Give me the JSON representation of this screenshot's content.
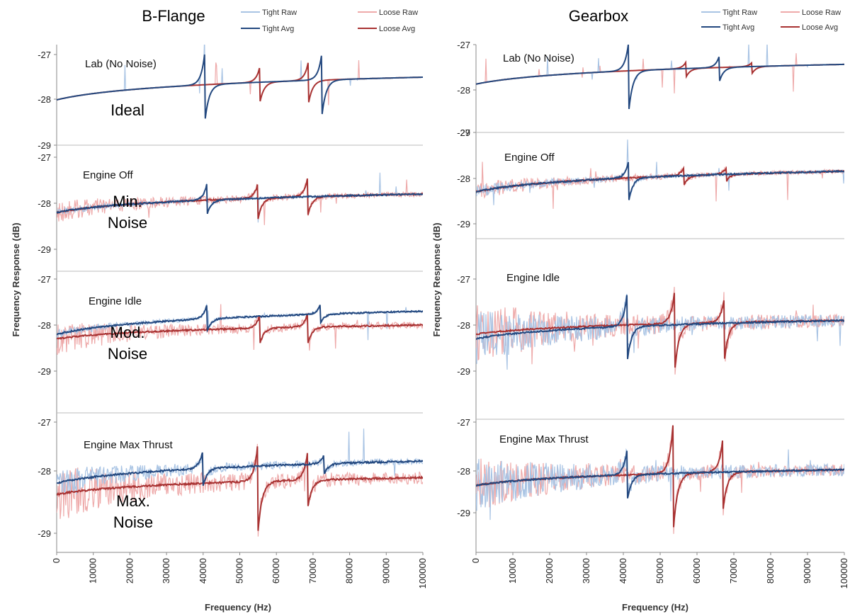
{
  "chart_data": {
    "type": "line",
    "legend": {
      "placement": "top-right",
      "entries": [
        {
          "label": "Tight Raw",
          "color": "#a9c4e4"
        },
        {
          "label": "Loose Raw",
          "color": "#eeaaaa"
        },
        {
          "label": "Tight Avg",
          "color": "#23487f"
        },
        {
          "label": "Loose Avg",
          "color": "#a83232"
        }
      ]
    },
    "xlabel": "Frequency (Hz)",
    "ylabel": "Frequency Response (dB)",
    "xlim": [
      0,
      100000
    ],
    "ylim": [
      -29,
      -27
    ],
    "x_ticks": [
      "0",
      "10000",
      "20000",
      "30000",
      "40000",
      "50000",
      "60000",
      "70000",
      "80000",
      "90000",
      "100000"
    ],
    "y_ticks": [
      "-27",
      "-28",
      "-29"
    ],
    "grid": false,
    "colors": {
      "tight_raw": "#a9c4e4",
      "loose_raw": "#eeaaaa",
      "tight_avg": "#23487f",
      "loose_avg": "#a83232"
    },
    "noise_labels": [
      "Ideal",
      "Min.\nNoise",
      "Mod.\nNoise",
      "Max.\nNoise"
    ],
    "columns": [
      {
        "title": "B-Flange",
        "panels": [
          {
            "condition": "Lab (No Noise)",
            "tight_start": -28.0,
            "tight_end": -27.5,
            "loose_start": -28.0,
            "loose_end": -27.5,
            "tight_resonances": [
              [
                40500,
                0.75,
                -0.8
              ],
              [
                72500,
                0.65,
                -0.75
              ]
            ],
            "loose_resonances": [
              [
                55500,
                0.35,
                -0.45
              ],
              [
                68800,
                0.45,
                -0.5
              ]
            ],
            "tight_noise": 0.0,
            "loose_noise": 0.0
          },
          {
            "condition": "Engine Off",
            "tight_start": -28.2,
            "tight_end": -27.8,
            "loose_start": -28.2,
            "loose_end": -27.8,
            "tight_resonances": [
              [
                41000,
                0.35,
                -0.35
              ]
            ],
            "loose_resonances": [
              [
                55000,
                0.35,
                -0.45
              ],
              [
                68500,
                0.4,
                -0.45
              ]
            ],
            "tight_noise": 0.05,
            "loose_noise": 0.15
          },
          {
            "condition": "Engine Idle",
            "tight_start": -28.2,
            "tight_end": -27.7,
            "loose_start": -28.3,
            "loose_end": -28.0,
            "tight_resonances": [
              [
                41000,
                0.3,
                -0.3
              ],
              [
                72000,
                0.2,
                -0.2
              ]
            ],
            "loose_resonances": [
              [
                55500,
                0.3,
                -0.35
              ],
              [
                68500,
                0.3,
                -0.4
              ]
            ],
            "tight_noise": 0.06,
            "loose_noise": 0.2
          },
          {
            "condition": "Engine Max Thrust",
            "tight_start": -28.1,
            "tight_end": -27.7,
            "loose_start": -28.3,
            "loose_end": -28.0,
            "tight_resonances": [
              [
                40000,
                0.35,
                -0.3
              ],
              [
                73000,
                0.15,
                -0.2
              ]
            ],
            "loose_resonances": [
              [
                55000,
                0.75,
                -0.9
              ],
              [
                68500,
                0.5,
                -0.55
              ]
            ],
            "tight_noise": 0.15,
            "loose_noise": 0.3
          }
        ]
      },
      {
        "title": "Gearbox",
        "panels": [
          {
            "condition": "Lab (No Noise)",
            "tight_start": -27.9,
            "tight_end": -27.45,
            "loose_start": -27.9,
            "loose_end": -27.45,
            "tight_resonances": [
              [
                41500,
                0.7,
                -0.9
              ],
              [
                66000,
                0.25,
                -0.35
              ]
            ],
            "loose_resonances": [
              [
                57000,
                0.15,
                -0.2
              ],
              [
                75000,
                0.1,
                -0.15
              ]
            ],
            "tight_noise": 0.0,
            "loose_noise": 0.0
          },
          {
            "condition": "Engine Off",
            "tight_start": -28.3,
            "tight_end": -27.85,
            "loose_start": -28.3,
            "loose_end": -27.85,
            "tight_resonances": [
              [
                41500,
                0.4,
                -0.5
              ]
            ],
            "loose_resonances": [
              [
                56500,
                0.2,
                -0.2
              ],
              [
                68000,
                0.15,
                -0.15
              ]
            ],
            "tight_noise": 0.08,
            "loose_noise": 0.12
          },
          {
            "condition": "Engine Idle",
            "tight_start": -28.3,
            "tight_end": -27.9,
            "loose_start": -28.2,
            "loose_end": -27.9,
            "tight_resonances": [
              [
                41000,
                0.7,
                -0.8
              ]
            ],
            "loose_resonances": [
              [
                54000,
                0.8,
                -1.0
              ],
              [
                67500,
                0.6,
                -0.8
              ]
            ],
            "tight_noise": 0.35,
            "loose_noise": 0.4
          },
          {
            "condition": "Engine Max Thrust",
            "tight_start": -28.4,
            "tight_end": -28.05,
            "loose_start": -28.4,
            "loose_end": -28.05,
            "tight_resonances": [
              [
                41000,
                0.55,
                -0.6
              ]
            ],
            "loose_resonances": [
              [
                53500,
                1.1,
                -1.35
              ],
              [
                67000,
                0.75,
                -0.9
              ]
            ],
            "tight_noise": 0.35,
            "loose_noise": 0.35
          }
        ]
      }
    ]
  }
}
